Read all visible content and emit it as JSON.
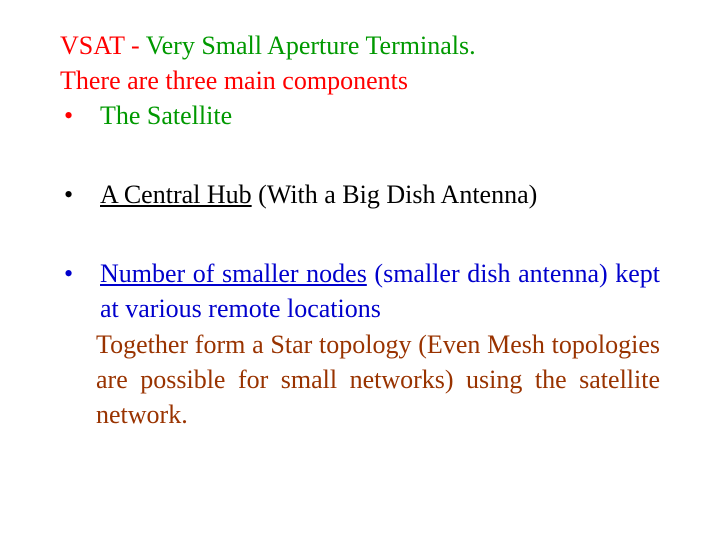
{
  "colors": {
    "red": "#ff0000",
    "green": "#009900",
    "black": "#000000",
    "blue": "#0000cc",
    "brown": "#993300",
    "bg": "#ffffff"
  },
  "font": {
    "family": "Times New Roman",
    "size_pt": 26
  },
  "intro": {
    "line1_pre": "VSAT - ",
    "line1_term": "Very Small Aperture Terminals.",
    "line2": "There are three main components"
  },
  "bullets": [
    {
      "mark": "•",
      "text": "The Satellite",
      "color": "green"
    },
    {
      "mark": "•",
      "underlined": "A Central Hub",
      "rest": " (With a Big Dish Antenna)",
      "color": "black"
    },
    {
      "mark": "•",
      "p1_u": "Number of smaller nodes",
      "p1_rest": " (smaller dish antenna) kept at various remote locations",
      "p2": "Together form a Star topology (Even Mesh topologies are possible for small networks) using the satellite network.",
      "color_p1": "blue",
      "color_p2": "brown"
    }
  ]
}
